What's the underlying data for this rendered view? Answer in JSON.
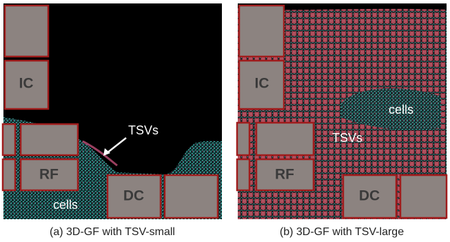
{
  "panels": [
    {
      "ic": "IC",
      "rf": "RF",
      "dc": "DC",
      "tsvs": "TSVs",
      "cells": "cells",
      "caption": "(a) 3D-GF with TSV-small"
    },
    {
      "ic": "IC",
      "rf": "RF",
      "dc": "DC",
      "tsvs": "TSVs",
      "cells": "cells",
      "caption": "(b) 3D-GF with TSV-large"
    }
  ]
}
